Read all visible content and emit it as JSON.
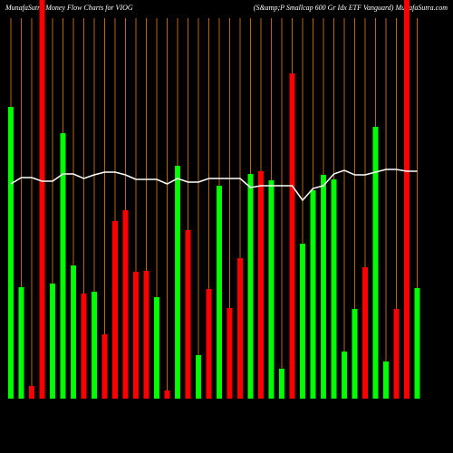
{
  "chart_data": {
    "type": "bar",
    "title": "MunafaSutra  Money Flow  Charts for VIOG",
    "subtitle": "(S&amp;P Smallcap 600  Gr Idx ETF Vanguard) MunafaSutra.com",
    "categories": [
      null,
      null,
      null,
      null,
      null,
      null,
      null,
      null,
      null,
      null,
      null,
      null,
      null,
      null,
      null,
      null,
      null,
      null,
      null,
      null,
      null,
      null,
      null,
      null,
      null,
      null,
      null,
      null,
      null,
      null,
      null,
      null,
      null,
      null,
      null,
      null,
      null,
      null,
      null,
      null
    ],
    "values": [
      322,
      123,
      14,
      440,
      127,
      293,
      147,
      116,
      118,
      71,
      196,
      208,
      140,
      141,
      112,
      9,
      257,
      186,
      48,
      121,
      235,
      100,
      155,
      248,
      251,
      241,
      33,
      359,
      171,
      230,
      247,
      242,
      52,
      99,
      145,
      300,
      41,
      99,
      440,
      122
    ],
    "colors": [
      "#00ff00",
      "#00ff00",
      "#ff0000",
      "#ff0000",
      "#00ff00",
      "#00ff00",
      "#00ff00",
      "#ff0000",
      "#00ff00",
      "#ff0000",
      "#ff0000",
      "#ff0000",
      "#ff0000",
      "#ff0000",
      "#00ff00",
      "#ff0000",
      "#00ff00",
      "#ff0000",
      "#00ff00",
      "#ff0000",
      "#00ff00",
      "#ff0000",
      "#ff0000",
      "#00ff00",
      "#ff0000",
      "#00ff00",
      "#00ff00",
      "#ff0000",
      "#00ff00",
      "#00ff00",
      "#00ff00",
      "#00ff00",
      "#00ff00",
      "#00ff00",
      "#ff0000",
      "#00ff00",
      "#00ff00",
      "#ff0000",
      "#ff0000",
      "#00ff00"
    ],
    "line": {
      "color": "#ffffff",
      "values": [
        237,
        244,
        244,
        240,
        240,
        248,
        248,
        243,
        247,
        250,
        250,
        247,
        242,
        242,
        242,
        237,
        243,
        239,
        239,
        243,
        243,
        243,
        243,
        233,
        235,
        235,
        235,
        235,
        219,
        232,
        235,
        248,
        252,
        247,
        247,
        250,
        253,
        253,
        251,
        251
      ]
    },
    "ylim": [
      0,
      440
    ]
  }
}
